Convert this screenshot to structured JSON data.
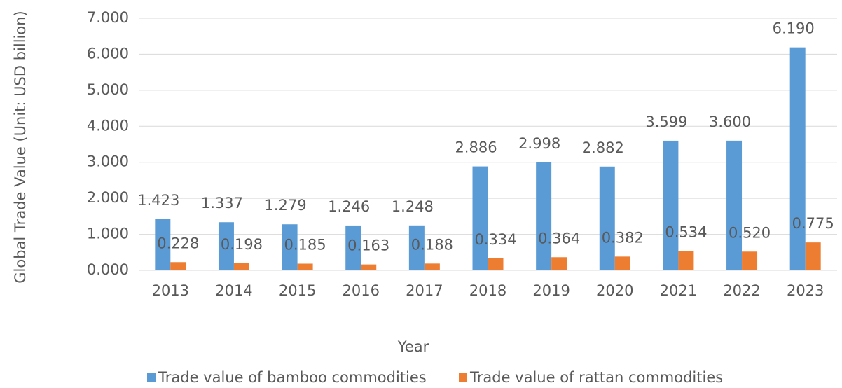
{
  "chart_data": {
    "type": "bar",
    "y_axis_label": "Global Trade Value (Unit: USD billion)",
    "x_axis_label": "Year",
    "categories": [
      "2013",
      "2014",
      "2015",
      "2016",
      "2017",
      "2018",
      "2019",
      "2020",
      "2021",
      "2022",
      "2023"
    ],
    "series": [
      {
        "name": "Trade value of bamboo commodities",
        "color": "#5b9bd5",
        "values": [
          1.423,
          1.337,
          1.279,
          1.246,
          1.248,
          2.886,
          2.998,
          2.882,
          3.599,
          3.6,
          6.19
        ],
        "value_labels": [
          "1.423",
          "1.337",
          "1.279",
          "1.246",
          "1.248",
          "2.886",
          "2.998",
          "2.882",
          "3.599",
          "3.600",
          "6.190"
        ]
      },
      {
        "name": "Trade value of rattan commodities",
        "color": "#ed7d31",
        "values": [
          0.228,
          0.198,
          0.185,
          0.163,
          0.188,
          0.334,
          0.364,
          0.382,
          0.534,
          0.52,
          0.775
        ],
        "value_labels": [
          "0.228",
          "0.198",
          "0.185",
          "0.163",
          "0.188",
          "0.334",
          "0.364",
          "0.382",
          "0.534",
          "0.520",
          "0.775"
        ]
      }
    ],
    "ylim": [
      0,
      7
    ],
    "yticks": [
      {
        "value": 0,
        "label": "0.000"
      },
      {
        "value": 1,
        "label": "1.000"
      },
      {
        "value": 2,
        "label": "2.000"
      },
      {
        "value": 3,
        "label": "3.000"
      },
      {
        "value": 4,
        "label": "4.000"
      },
      {
        "value": 5,
        "label": "5.000"
      },
      {
        "value": 6,
        "label": "6.000"
      },
      {
        "value": 7,
        "label": "7.000"
      }
    ],
    "grid": true,
    "legend": "bottom"
  }
}
